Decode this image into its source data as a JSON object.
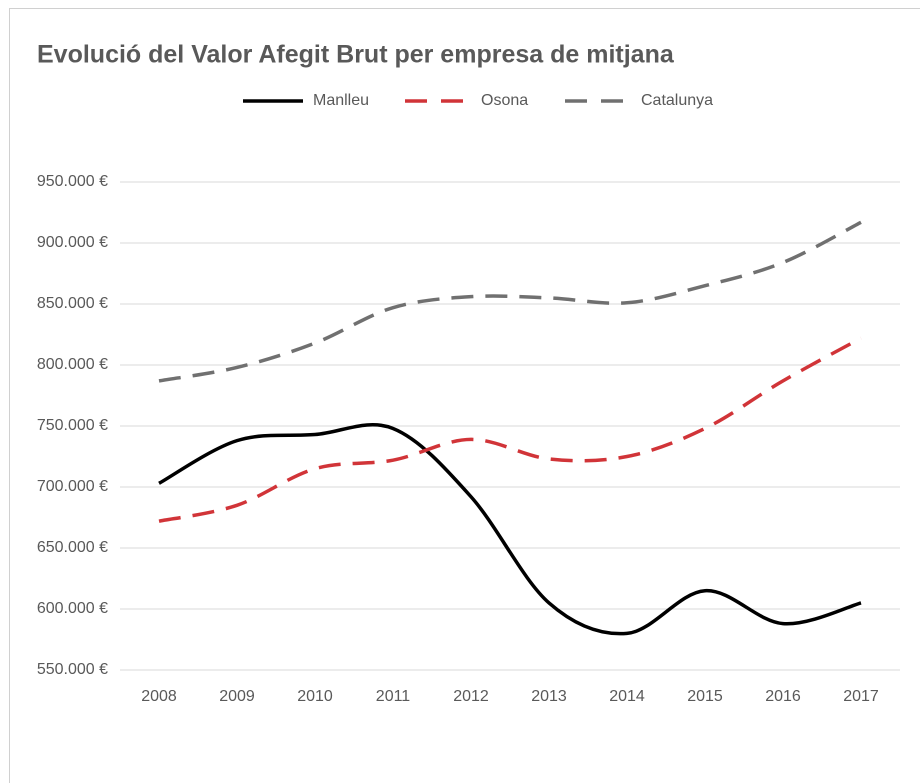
{
  "chart_data": {
    "type": "line",
    "title": "Evolució del Valor Afegit Brut per empresa de mitjana",
    "categories": [
      "2008",
      "2009",
      "2010",
      "2011",
      "2012",
      "2013",
      "2014",
      "2015",
      "2016",
      "2017"
    ],
    "series": [
      {
        "name": "Manlleu",
        "color": "#000000",
        "dash": "solid",
        "values": [
          703000,
          738000,
          743000,
          748000,
          692000,
          605000,
          580000,
          615000,
          588000,
          605000
        ]
      },
      {
        "name": "Osona",
        "color": "#d13438",
        "dash": "dashed",
        "values": [
          672000,
          685000,
          715000,
          722000,
          739000,
          723000,
          725000,
          748000,
          787000,
          822000
        ]
      },
      {
        "name": "Catalunya",
        "color": "#707070",
        "dash": "dashed",
        "values": [
          787000,
          798000,
          818000,
          847000,
          856000,
          855000,
          851000,
          865000,
          884000,
          917000
        ]
      }
    ],
    "ylim": [
      550000,
      950000
    ],
    "yticks": [
      {
        "value": 550000,
        "label": "550.000 €"
      },
      {
        "value": 600000,
        "label": "600.000 €"
      },
      {
        "value": 650000,
        "label": "650.000 €"
      },
      {
        "value": 700000,
        "label": "700.000 €"
      },
      {
        "value": 750000,
        "label": "750.000 €"
      },
      {
        "value": 800000,
        "label": "800.000 €"
      },
      {
        "value": 850000,
        "label": "850.000 €"
      },
      {
        "value": 900000,
        "label": "900.000 €"
      },
      {
        "value": 950000,
        "label": "950.000 €"
      }
    ],
    "grid": true,
    "legend": "top",
    "smooth": true
  }
}
